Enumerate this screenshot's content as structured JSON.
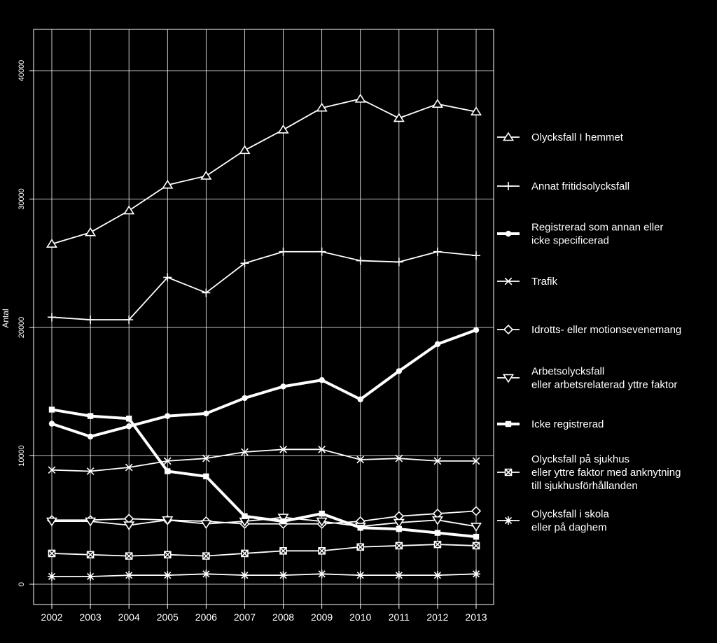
{
  "chart_data": {
    "type": "line",
    "title": "",
    "xlabel": "",
    "ylabel": "Antal",
    "x": [
      "2002",
      "2003",
      "2004",
      "2005",
      "2006",
      "2007",
      "2008",
      "2009",
      "2010",
      "2011",
      "2012",
      "2013"
    ],
    "ylim": [
      0,
      42000
    ],
    "yticks": [
      "0",
      "10000",
      "20000",
      "30000",
      "40000"
    ],
    "grid": true,
    "legend_position": "right",
    "series": [
      {
        "name": "Olycksfall I hemmet",
        "marker": "triangle-up",
        "bold": false,
        "values": [
          26500,
          27400,
          29100,
          31100,
          31800,
          33800,
          35400,
          37100,
          37800,
          36300,
          37400,
          36800
        ]
      },
      {
        "name": "Annat fritidsolycksfall",
        "marker": "plus",
        "bold": false,
        "values": [
          20800,
          20600,
          20600,
          23900,
          22700,
          25000,
          25900,
          25900,
          25200,
          25100,
          25900,
          25600
        ]
      },
      {
        "name": "Registrerad som annan eller icke specificerad",
        "marker": "dot",
        "bold": true,
        "values": [
          12500,
          11500,
          12300,
          13100,
          13300,
          14500,
          15400,
          15900,
          14400,
          16600,
          18700,
          19800
        ]
      },
      {
        "name": "Trafik",
        "marker": "x",
        "bold": false,
        "values": [
          8900,
          8800,
          9100,
          9600,
          9800,
          10300,
          10500,
          10500,
          9700,
          9800,
          9600,
          9600
        ]
      },
      {
        "name": "Idrotts- eller motionsevenemang",
        "marker": "diamond",
        "bold": false,
        "values": [
          5000,
          5000,
          5100,
          5000,
          4900,
          4700,
          4700,
          4700,
          4900,
          5300,
          5500,
          5700
        ]
      },
      {
        "name": "Arbetsolycksfall eller arbetsrelaterad yttre faktor",
        "marker": "triangle-down",
        "bold": false,
        "values": [
          4900,
          4900,
          4600,
          5000,
          4700,
          4900,
          5200,
          4900,
          4500,
          4800,
          5000,
          4500
        ]
      },
      {
        "name": "Icke registrerad",
        "marker": "square-filled",
        "bold": true,
        "values": [
          13600,
          13100,
          12900,
          8800,
          8400,
          5300,
          4900,
          5500,
          4400,
          4300,
          4000,
          3700
        ]
      },
      {
        "name": "Olycksfall på sjukhus eller yttre faktor med anknytning till sjukhusförhållanden",
        "marker": "square-x",
        "bold": false,
        "values": [
          2400,
          2300,
          2200,
          2300,
          2200,
          2400,
          2600,
          2600,
          2900,
          3000,
          3100,
          3000
        ]
      },
      {
        "name": "Olycksfall i skola eller på daghem",
        "marker": "asterisk",
        "bold": false,
        "values": [
          600,
          600,
          700,
          700,
          800,
          700,
          700,
          800,
          700,
          700,
          700,
          800
        ]
      }
    ],
    "legend": [
      {
        "lines": [
          "Olycksfall I hemmet"
        ]
      },
      {
        "lines": [
          "Annat fritidsolycksfall"
        ]
      },
      {
        "lines": [
          "Registrerad som annan eller",
          "icke specificerad"
        ]
      },
      {
        "lines": [
          "Trafik"
        ]
      },
      {
        "lines": [
          "Idrotts- eller motionsevenemang"
        ]
      },
      {
        "lines": [
          "Arbetsolycksfall",
          "eller arbetsrelaterad yttre faktor"
        ]
      },
      {
        "lines": [
          "Icke registrerad"
        ]
      },
      {
        "lines": [
          "Olycksfall på sjukhus",
          "eller yttre faktor med anknytning",
          "till sjukhusförhållanden"
        ]
      },
      {
        "lines": [
          "Olycksfall i skola",
          "eller på daghem"
        ]
      }
    ],
    "colors": {
      "background": "#000000",
      "foreground": "#ffffff"
    }
  }
}
